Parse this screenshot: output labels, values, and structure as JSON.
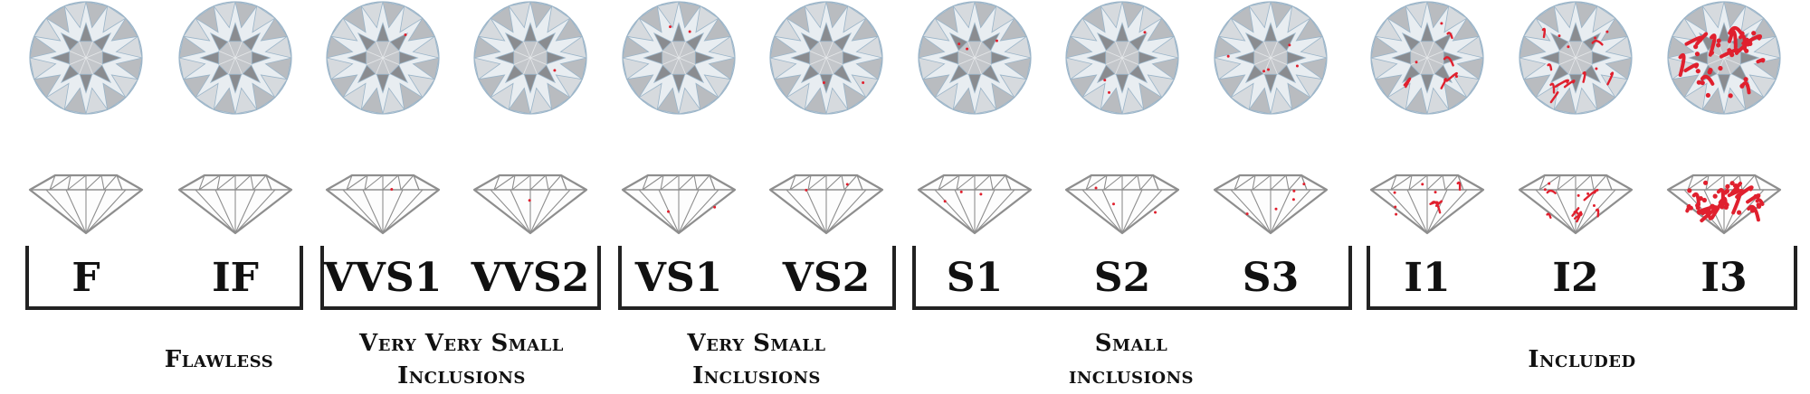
{
  "colors": {
    "facet_light": "#e8edf1",
    "facet_mid": "#b9bcc0",
    "facet_dark": "#8a8c90",
    "facet_edge": "#9ab4c8",
    "outline": "#8e8e8e",
    "inclusion": "#e0202e",
    "text": "#111111"
  },
  "grades": [
    {
      "label": "F",
      "inclusion_level": 0
    },
    {
      "label": "IF",
      "inclusion_level": 0
    },
    {
      "label": "VVS1",
      "inclusion_level": 1
    },
    {
      "label": "VVS2",
      "inclusion_level": 1
    },
    {
      "label": "VS1",
      "inclusion_level": 2
    },
    {
      "label": "VS2",
      "inclusion_level": 2
    },
    {
      "label": "S1",
      "inclusion_level": 3
    },
    {
      "label": "S2",
      "inclusion_level": 3
    },
    {
      "label": "S3",
      "inclusion_level": 4
    },
    {
      "label": "I1",
      "inclusion_level": 5
    },
    {
      "label": "I2",
      "inclusion_level": 6
    },
    {
      "label": "I3",
      "inclusion_level": 8
    }
  ],
  "categories": [
    {
      "lines": [
        "Flawless"
      ],
      "grade_range": [
        0,
        1
      ]
    },
    {
      "lines": [
        "Very Very Small",
        "Inclusions"
      ],
      "grade_range": [
        2,
        3
      ]
    },
    {
      "lines": [
        "Very Small",
        "Inclusions"
      ],
      "grade_range": [
        4,
        5
      ]
    },
    {
      "lines": [
        "Small",
        "inclusions"
      ],
      "grade_range": [
        6,
        8
      ]
    },
    {
      "lines": [
        "Included"
      ],
      "grade_range": [
        9,
        11
      ]
    }
  ]
}
